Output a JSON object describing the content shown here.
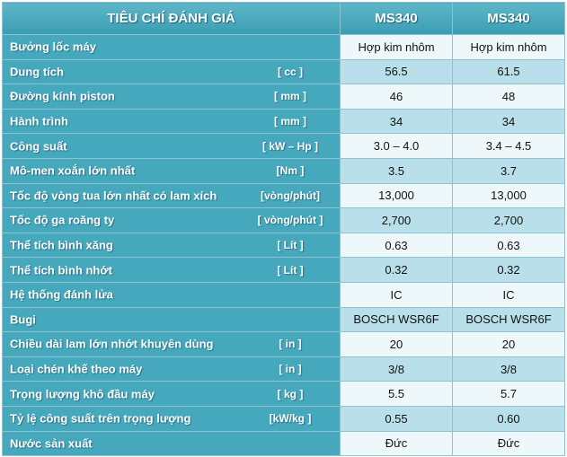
{
  "table": {
    "header": [
      "TIÊU CHÍ ĐÁNH GIÁ",
      "MS340",
      "MS340"
    ],
    "rows": [
      {
        "label": "Bưởng lốc máy",
        "values": [
          "Hợp kim nhôm",
          "Hợp kim nhôm"
        ]
      },
      {
        "label": "Dung tích",
        "unit": "[ cc ]",
        "values": [
          "56.5",
          "61.5"
        ]
      },
      {
        "label": "Đường kính piston",
        "unit": "[ mm ]",
        "values": [
          "46",
          "48"
        ]
      },
      {
        "label": "Hành trình",
        "unit": "[ mm ]",
        "values": [
          "34",
          "34"
        ]
      },
      {
        "label": "Công suất",
        "unit": "[ kW – Hp ]",
        "values": [
          "3.0 – 4.0",
          "3.4 – 4.5"
        ]
      },
      {
        "label": "Mô-men xoắn lớn nhất",
        "unit": "[Nm ]",
        "values": [
          "3.5",
          "3.7"
        ]
      },
      {
        "label": "Tốc độ vòng tua lớn nhất có lam xích",
        "unit": "[vòng/phút]",
        "values": [
          "13,000",
          "13,000"
        ]
      },
      {
        "label": "Tốc độ ga roăng ty",
        "unit": "[ vòng/phút ]",
        "values": [
          "2,700",
          "2,700"
        ]
      },
      {
        "label": "Thể tích bình xăng",
        "unit": "[ Lít ]",
        "values": [
          "0.63",
          "0.63"
        ]
      },
      {
        "label": "Thể tích bình nhớt",
        "unit": "[ Lít ]",
        "values": [
          "0.32",
          "0.32"
        ]
      },
      {
        "label": "Hệ thống đánh lửa",
        "values": [
          "IC",
          "IC"
        ]
      },
      {
        "label": "Bugi",
        "values": [
          "BOSCH WSR6F",
          "BOSCH WSR6F"
        ]
      },
      {
        "label": "Chiều dài lam lớn nhớt khuyên dùng",
        "unit": "[ in ]",
        "values": [
          "20",
          "20"
        ]
      },
      {
        "label": "Loại chén khế theo máy",
        "unit": "[ in ]",
        "values": [
          "3/8",
          "3/8"
        ]
      },
      {
        "label": "Trọng lượng khô đầu máy",
        "unit": "[ kg ]",
        "values": [
          "5.5",
          "5.7"
        ]
      },
      {
        "label": "Tỷ lệ công suất trên trọng lượng",
        "unit": "[kW/kg ]",
        "values": [
          "0.55",
          "0.60"
        ]
      },
      {
        "label": "Nước sản xuất",
        "values": [
          "Đức",
          "Đức"
        ]
      }
    ]
  }
}
